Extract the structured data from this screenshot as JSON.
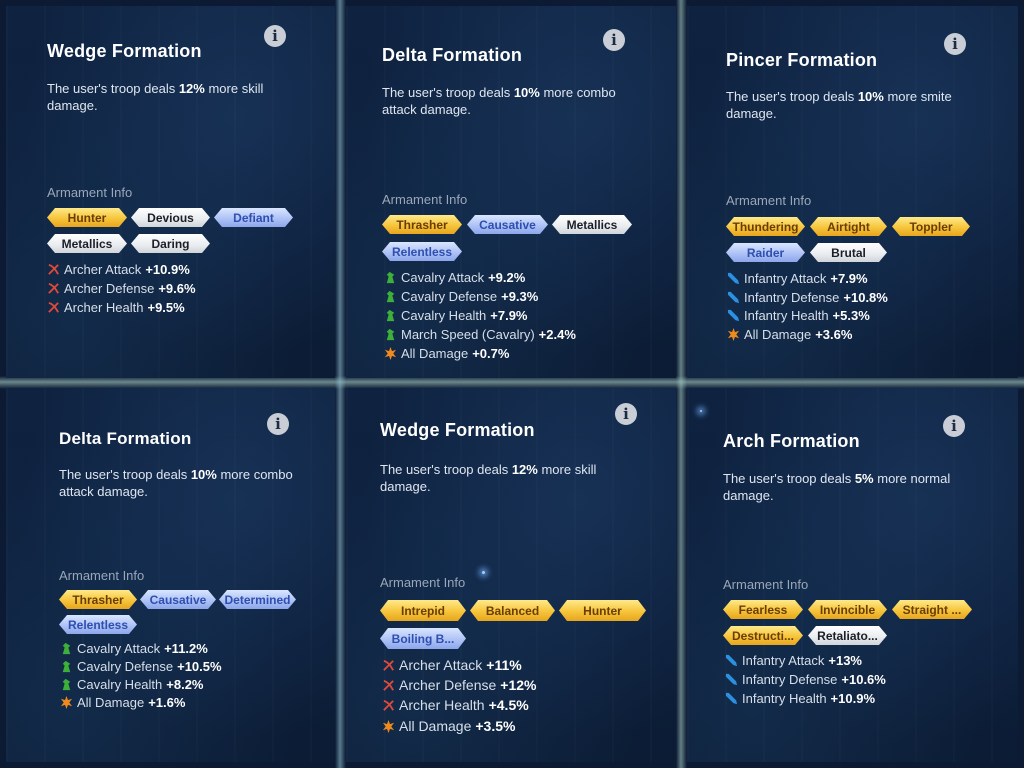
{
  "armament_label": "Armament Info",
  "panels": [
    {
      "title": "Wedge Formation",
      "desc_pre": "The user's troop deals ",
      "desc_value": "12%",
      "desc_post": " more skill damage.",
      "chips": [
        {
          "label": "Hunter",
          "color": "gold"
        },
        {
          "label": "Devious",
          "color": "white"
        },
        {
          "label": "Defiant",
          "color": "blue"
        },
        {
          "label": "Metallics",
          "color": "white"
        },
        {
          "label": "Daring",
          "color": "white"
        }
      ],
      "stats": [
        {
          "icon": "archer-icon",
          "label": "Archer Attack",
          "value": "+10.9%"
        },
        {
          "icon": "archer-icon",
          "label": "Archer Defense",
          "value": "+9.6%"
        },
        {
          "icon": "archer-icon",
          "label": "Archer Health",
          "value": "+9.5%"
        }
      ]
    },
    {
      "title": "Delta Formation",
      "desc_pre": "The user's troop deals ",
      "desc_value": "10%",
      "desc_post": " more combo attack damage.",
      "chips": [
        {
          "label": "Thrasher",
          "color": "gold"
        },
        {
          "label": "Causative",
          "color": "blue"
        },
        {
          "label": "Metallics",
          "color": "white"
        },
        {
          "label": "Relentless",
          "color": "blue"
        }
      ],
      "stats": [
        {
          "icon": "cavalry-icon",
          "label": "Cavalry Attack",
          "value": "+9.2%"
        },
        {
          "icon": "cavalry-icon",
          "label": "Cavalry Defense",
          "value": "+9.3%"
        },
        {
          "icon": "cavalry-icon",
          "label": "Cavalry Health",
          "value": "+7.9%"
        },
        {
          "icon": "cavalry-icon",
          "label": "March Speed (Cavalry)",
          "value": "+2.4%"
        },
        {
          "icon": "all-damage-icon",
          "label": "All Damage",
          "value": "+0.7%"
        }
      ]
    },
    {
      "title": "Pincer Formation",
      "desc_pre": "The user's troop deals ",
      "desc_value": "10%",
      "desc_post": " more smite damage.",
      "chips": [
        {
          "label": "Thundering",
          "color": "gold"
        },
        {
          "label": "Airtight",
          "color": "gold"
        },
        {
          "label": "Toppler",
          "color": "gold"
        },
        {
          "label": "Raider",
          "color": "blue"
        },
        {
          "label": "Brutal",
          "color": "white"
        }
      ],
      "stats": [
        {
          "icon": "infantry-icon",
          "label": "Infantry Attack",
          "value": "+7.9%"
        },
        {
          "icon": "infantry-icon",
          "label": "Infantry Defense",
          "value": "+10.8%"
        },
        {
          "icon": "infantry-icon",
          "label": "Infantry Health",
          "value": "+5.3%"
        },
        {
          "icon": "all-damage-icon",
          "label": "All Damage",
          "value": "+3.6%"
        }
      ]
    },
    {
      "title": "Delta Formation",
      "desc_pre": "The user's troop deals ",
      "desc_value": "10%",
      "desc_post": " more combo attack damage.",
      "chips": [
        {
          "label": "Thrasher",
          "color": "gold"
        },
        {
          "label": "Causative",
          "color": "blue"
        },
        {
          "label": "Determined",
          "color": "blue"
        },
        {
          "label": "Relentless",
          "color": "blue"
        }
      ],
      "stats": [
        {
          "icon": "cavalry-icon",
          "label": "Cavalry Attack",
          "value": "+11.2%"
        },
        {
          "icon": "cavalry-icon",
          "label": "Cavalry Defense",
          "value": "+10.5%"
        },
        {
          "icon": "cavalry-icon",
          "label": "Cavalry Health",
          "value": "+8.2%"
        },
        {
          "icon": "all-damage-icon",
          "label": "All Damage",
          "value": "+1.6%"
        }
      ]
    },
    {
      "title": "Wedge Formation",
      "desc_pre": "The user's troop deals ",
      "desc_value": "12%",
      "desc_post": " more skill damage.",
      "chips": [
        {
          "label": "Intrepid",
          "color": "gold"
        },
        {
          "label": "Balanced",
          "color": "gold"
        },
        {
          "label": "Hunter",
          "color": "gold"
        },
        {
          "label": "Boiling B...",
          "color": "blue"
        }
      ],
      "stats": [
        {
          "icon": "archer-icon",
          "label": "Archer Attack",
          "value": "+11%"
        },
        {
          "icon": "archer-icon",
          "label": "Archer Defense",
          "value": "+12%"
        },
        {
          "icon": "archer-icon",
          "label": "Archer Health",
          "value": "+4.5%"
        },
        {
          "icon": "all-damage-icon",
          "label": "All Damage",
          "value": "+3.5%"
        }
      ]
    },
    {
      "title": "Arch Formation",
      "desc_pre": "The user's troop deals ",
      "desc_value": "5%",
      "desc_post": " more normal damage.",
      "chips": [
        {
          "label": "Fearless",
          "color": "gold"
        },
        {
          "label": "Invincible",
          "color": "gold"
        },
        {
          "label": "Straight ...",
          "color": "gold"
        },
        {
          "label": "Destructi...",
          "color": "gold"
        },
        {
          "label": "Retaliato...",
          "color": "white"
        }
      ],
      "stats": [
        {
          "icon": "infantry-icon",
          "label": "Infantry Attack",
          "value": "+13%"
        },
        {
          "icon": "infantry-icon",
          "label": "Infantry Defense",
          "value": "+10.6%"
        },
        {
          "icon": "infantry-icon",
          "label": "Infantry Health",
          "value": "+10.9%"
        }
      ]
    }
  ]
}
